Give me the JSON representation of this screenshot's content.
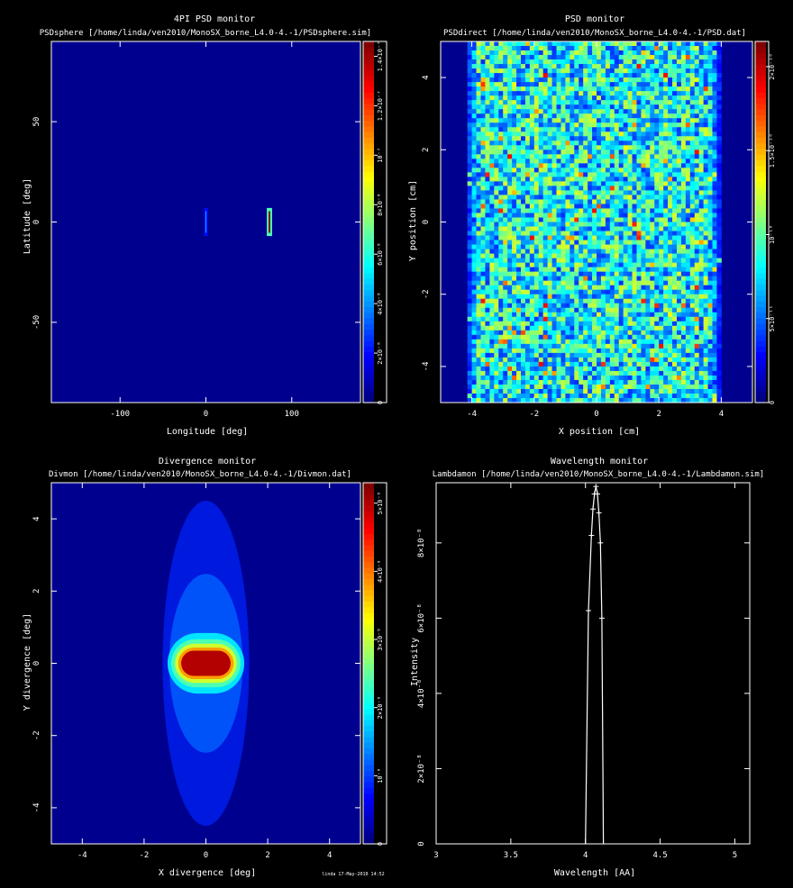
{
  "chart_data": [
    {
      "type": "heatmap",
      "title": "4PI PSD monitor",
      "subtitle": "PSDsphere [/home/linda/ven2010/MonoSX_borne_L4.0-4.-1/PSDsphere.sim]",
      "xlabel": "Longitude [deg]",
      "ylabel": "Latitude [deg]",
      "xlim": [
        -180,
        180
      ],
      "ylim": [
        -90,
        90
      ],
      "xticks": [
        "-100",
        "0",
        "100"
      ],
      "yticks": [
        "50",
        "0",
        "-50"
      ],
      "colorbar_ticks": [
        "0",
        "2×10⁻⁸",
        "4×10⁻⁸",
        "6×10⁻⁸",
        "8×10⁻⁸",
        "10⁻⁷",
        "1.2×10⁻⁷",
        "1.4×10⁻⁷"
      ],
      "background": "#00008f",
      "spots": [
        {
          "x": 0,
          "y": 0,
          "w_deg": 2,
          "h_deg": 7,
          "intensity": 0.3
        },
        {
          "x": 74,
          "y": 0,
          "w_deg": 4,
          "h_deg": 7,
          "intensity": 1.0
        }
      ]
    },
    {
      "type": "heatmap",
      "title": "PSD monitor",
      "subtitle": "PSDdirect [/home/linda/ven2010/MonoSX_borne_L4.0-4.-1/PSD.dat]",
      "xlabel": "X position [cm]",
      "ylabel": "Y position [cm]",
      "xlim": [
        -5,
        5
      ],
      "ylim": [
        -5,
        5
      ],
      "xticks": [
        "-4",
        "-2",
        "0",
        "2",
        "4"
      ],
      "yticks": [
        "4",
        "2",
        "0",
        "-2",
        "-4"
      ],
      "colorbar_ticks": [
        "0",
        "5×10⁻¹¹",
        "10⁻¹⁰",
        "1.5×10⁻¹⁰",
        "2×10⁻¹⁰"
      ],
      "background": "#00008f",
      "filled_x_range": [
        -3.8,
        3.6
      ]
    },
    {
      "type": "heatmap",
      "title": "Divergence monitor",
      "subtitle": "Divmon [/home/linda/ven2010/MonoSX_borne_L4.0-4.-1/Divmon.dat]",
      "xlabel": "X divergence [deg]",
      "ylabel": "Y divergence [deg]",
      "xlim": [
        -5,
        5
      ],
      "ylim": [
        -5,
        5
      ],
      "xticks": [
        "-4",
        "-2",
        "0",
        "2",
        "4"
      ],
      "yticks": [
        "4",
        "2",
        "0",
        "-2",
        "-4"
      ],
      "colorbar_ticks": [
        "0",
        "10⁻⁹",
        "2×10⁻⁹",
        "3×10⁻⁹",
        "4×10⁻⁹",
        "5×10⁻⁹"
      ],
      "background": "#00008f",
      "core": {
        "x_half_width": 0.8,
        "y_half_width": 0.35
      },
      "halo": {
        "x_half_width": 1.4,
        "y_half_width": 4.5
      }
    },
    {
      "type": "line",
      "title": "Wavelength monitor",
      "subtitle": "Lambdamon [/home/linda/ven2010/MonoSX_borne_L4.0-4.-1/Lambdamon.sim]",
      "xlabel": "Wavelength [AA]",
      "ylabel": "Intensity",
      "xlim": [
        3,
        5.1
      ],
      "ylim": [
        0,
        9.6e-08
      ],
      "xticks": [
        "3",
        "3.5",
        "4",
        "4.5",
        "5"
      ],
      "yticks": [
        "0",
        "2×10⁻⁸",
        "4×10⁻⁸",
        "6×10⁻⁸",
        "8×10⁻⁸"
      ],
      "background": "#000000",
      "series": [
        {
          "x": [
            4.0,
            4.02,
            4.04,
            4.05,
            4.06,
            4.07,
            4.08,
            4.09,
            4.1,
            4.11,
            4.12
          ],
          "values": [
            0,
            6.2e-08,
            8.2e-08,
            8.9e-08,
            9.3e-08,
            9.5e-08,
            9.3e-08,
            8.8e-08,
            8e-08,
            6e-08,
            0
          ]
        }
      ]
    }
  ],
  "footer": {
    "text": "linda 17-May-2010 14:52"
  }
}
